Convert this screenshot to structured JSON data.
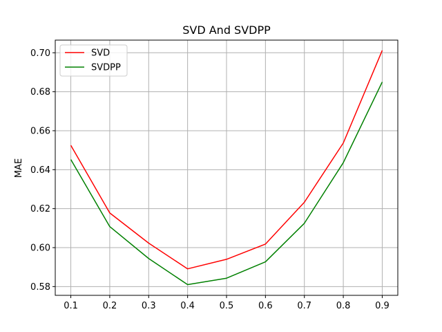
{
  "chart_data": {
    "type": "line",
    "title": "SVD And SVDPP",
    "xlabel": "",
    "ylabel": "MAE",
    "x": [
      0.1,
      0.2,
      0.3,
      0.4,
      0.5,
      0.6,
      0.7,
      0.8,
      0.9
    ],
    "x_tick_labels": [
      "0.1",
      "0.2",
      "0.3",
      "0.4",
      "0.5",
      "0.6",
      "0.7",
      "0.8",
      "0.9"
    ],
    "y_ticks": [
      0.58,
      0.6,
      0.62,
      0.64,
      0.66,
      0.68,
      0.7
    ],
    "y_tick_labels": [
      "0.58",
      "0.60",
      "0.62",
      "0.64",
      "0.66",
      "0.68",
      "0.70"
    ],
    "xlim": [
      0.06,
      0.94
    ],
    "ylim": [
      0.5755,
      0.7065
    ],
    "grid": true,
    "legend_position": "top-left",
    "series": [
      {
        "name": "SVD",
        "color": "#ff0000",
        "values": [
          0.6525,
          0.6178,
          0.6023,
          0.5891,
          0.594,
          0.6018,
          0.6233,
          0.6537,
          0.7012
        ]
      },
      {
        "name": "SVDPP",
        "color": "#008000",
        "values": [
          0.6452,
          0.6108,
          0.5944,
          0.581,
          0.5843,
          0.5927,
          0.6125,
          0.6436,
          0.685
        ]
      }
    ]
  }
}
